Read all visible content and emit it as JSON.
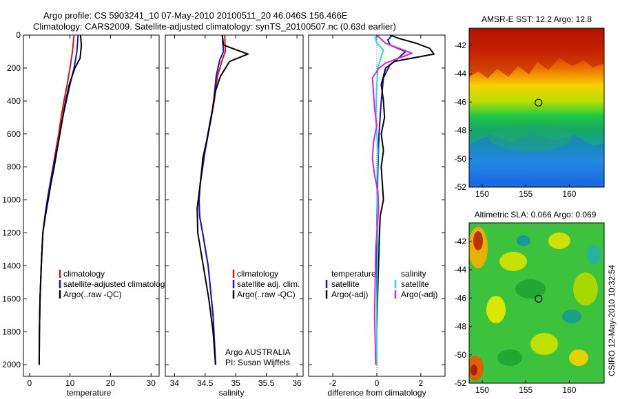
{
  "header": {
    "line1": "Argo profile: CS 5903241_10 07-May-2010 20100511_20 46.046S 156.466E",
    "line2": "Climatology: CARS2009. Satellite-adjusted climatology: synTS_20100507.nc (0.63d earlier)"
  },
  "credit": "CSIRO 12-May-2010 10:32:54",
  "colors": {
    "climatology": "#dd1111",
    "satellite": "#1111dd",
    "argo": "#000000",
    "satellite_salinity": "#22dddd",
    "argo_salinity_adj": "#dd22dd"
  },
  "chart_data": [
    {
      "id": "temperature",
      "type": "line",
      "xlabel": "temperature",
      "xlim": [
        -1.5,
        32
      ],
      "xticks": [
        0,
        10,
        20,
        30
      ],
      "ylim": [
        0,
        2070
      ],
      "yticks": [
        0,
        200,
        400,
        600,
        800,
        1000,
        1200,
        1400,
        1600,
        1800,
        2000
      ],
      "yreversed": true,
      "legend": {
        "position": "lower-right",
        "entries": [
          "climatology",
          "satellite-adjusted climatology",
          "Argo(..raw -QC)"
        ]
      },
      "series": [
        {
          "name": "climatology",
          "color": "#dd1111",
          "x": [
            11.0,
            10.6,
            10.0,
            9.3,
            8.5,
            7.8,
            7.2,
            6.5,
            5.8,
            5.1,
            4.4,
            3.8,
            3.3,
            2.9,
            2.6,
            2.45,
            2.4
          ],
          "y": [
            0,
            100,
            200,
            300,
            400,
            500,
            600,
            700,
            800,
            900,
            1000,
            1100,
            1200,
            1400,
            1600,
            1800,
            2000
          ]
        },
        {
          "name": "satellite-adjusted climatology",
          "color": "#1111dd",
          "x": [
            12.0,
            11.7,
            11.0,
            10.0,
            9.1,
            8.2,
            7.5,
            6.7,
            5.9,
            5.1,
            4.4,
            3.8,
            3.3,
            2.9,
            2.6,
            2.45,
            2.4
          ],
          "y": [
            0,
            100,
            200,
            300,
            400,
            500,
            600,
            700,
            800,
            900,
            1000,
            1100,
            1200,
            1400,
            1600,
            1800,
            2000
          ]
        },
        {
          "name": "Argo(..raw -QC)",
          "color": "#000000",
          "x": [
            12.6,
            12.8,
            12.5,
            11.2,
            9.8,
            8.9,
            8.2,
            7.5,
            6.8,
            6.1,
            5.3,
            4.6,
            3.9,
            3.3,
            2.9,
            2.6,
            2.45,
            2.4
          ],
          "y": [
            0,
            60,
            140,
            200,
            300,
            400,
            500,
            600,
            700,
            800,
            900,
            1000,
            1100,
            1200,
            1400,
            1600,
            1800,
            2000
          ]
        }
      ]
    },
    {
      "id": "salinity",
      "type": "line",
      "xlabel": "salinity",
      "xlim": [
        33.85,
        36.1
      ],
      "xticks": [
        34,
        34.5,
        35,
        35.5,
        36
      ],
      "ylim": [
        0,
        2070
      ],
      "yticks": [
        0,
        200,
        400,
        600,
        800,
        1000,
        1200,
        1400,
        1600,
        1800,
        2000
      ],
      "yreversed": true,
      "legend": {
        "position": "lower-right",
        "entries": [
          "climatology",
          "satellite adj. clim.",
          "Argo(..raw -QC)"
        ]
      },
      "annotation": [
        "Argo AUSTRALIA",
        "PI: Susan Wijffels"
      ],
      "series": [
        {
          "name": "climatology",
          "color": "#dd1111",
          "x": [
            34.82,
            34.83,
            34.78,
            34.7,
            34.65,
            34.6,
            34.55,
            34.5,
            34.46,
            34.42,
            34.4,
            34.41,
            34.46,
            34.55,
            34.63,
            34.67
          ],
          "y": [
            0,
            100,
            150,
            250,
            400,
            500,
            600,
            700,
            800,
            900,
            1000,
            1100,
            1200,
            1400,
            1700,
            2000
          ]
        },
        {
          "name": "satellite adj. clim.",
          "color": "#1111dd",
          "x": [
            34.78,
            34.8,
            34.74,
            34.68,
            34.64,
            34.6,
            34.55,
            34.5,
            34.46,
            34.42,
            34.4,
            34.41,
            34.46,
            34.55,
            34.63,
            34.67
          ],
          "y": [
            0,
            100,
            150,
            250,
            400,
            500,
            600,
            700,
            800,
            900,
            1000,
            1100,
            1200,
            1400,
            1700,
            2000
          ]
        },
        {
          "name": "Argo(..raw -QC)",
          "color": "#000000",
          "x": [
            34.78,
            34.8,
            35.05,
            35.2,
            34.9,
            34.75,
            34.66,
            34.62,
            34.57,
            34.52,
            34.46,
            34.45,
            34.42,
            34.37,
            34.38,
            34.47,
            34.56,
            34.63,
            34.67
          ],
          "y": [
            0,
            60,
            95,
            115,
            160,
            250,
            350,
            450,
            550,
            650,
            750,
            800,
            900,
            1050,
            1200,
            1400,
            1600,
            1800,
            2000
          ]
        }
      ]
    },
    {
      "id": "difference",
      "type": "line",
      "xlabel": "difference from climatology",
      "xlim": [
        -3.1,
        3.1
      ],
      "xticks": [
        -2,
        0,
        2
      ],
      "ylim": [
        0,
        2070
      ],
      "yticks": [
        0,
        200,
        400,
        600,
        800,
        1000,
        1200,
        1400,
        1600,
        1800,
        2000
      ],
      "yreversed": true,
      "legend_temperature": {
        "header": "temperature",
        "entries": [
          "satellite",
          "Argo(-adj)"
        ]
      },
      "legend_salinity": {
        "header": "salinity",
        "entries": [
          "satellite",
          "Argo(-adj)"
        ]
      },
      "series": [
        {
          "name": "temperature satellite",
          "color": "#1111dd",
          "x": [
            0.7,
            0.5,
            0.6,
            1.3,
            0.9,
            0.6,
            0.3,
            0.2,
            0.1,
            0.05,
            0.02,
            0,
            0
          ],
          "y": [
            0,
            30,
            60,
            100,
            150,
            180,
            260,
            400,
            600,
            800,
            1000,
            1500,
            2000
          ]
        },
        {
          "name": "temperature Argo(-adj)",
          "color": "#000000",
          "x": [
            0.6,
            1.0,
            1.8,
            2.4,
            2.6,
            1.6,
            0.8,
            0.4,
            0.2,
            0.3,
            0.35,
            0.2,
            0.3,
            0.2,
            0.25,
            0.3,
            0.15,
            0.1,
            0.05,
            0.0,
            0.0
          ],
          "y": [
            0,
            20,
            50,
            80,
            115,
            140,
            160,
            200,
            300,
            400,
            500,
            600,
            700,
            800,
            900,
            1000,
            1100,
            1300,
            1500,
            1800,
            2000
          ]
        },
        {
          "name": "salinity satellite",
          "color": "#22dddd",
          "x": [
            -0.1,
            0,
            0.3,
            0.2,
            0.05,
            0,
            -0.05,
            0.05,
            0,
            0.05,
            0,
            0
          ],
          "y": [
            0,
            50,
            90,
            130,
            200,
            300,
            500,
            700,
            900,
            1200,
            1600,
            2000
          ]
        },
        {
          "name": "salinity Argo(-adj)",
          "color": "#dd22dd",
          "x": [
            0,
            0.4,
            1.0,
            1.6,
            1.0,
            0.4,
            0.1,
            -0.2,
            -0.15,
            -0.1,
            0,
            -0.15,
            -0.2,
            -0.1,
            0.05,
            0.08,
            -0.05,
            -0.1,
            -0.05
          ],
          "y": [
            0,
            50,
            80,
            110,
            140,
            170,
            200,
            260,
            350,
            450,
            550,
            650,
            750,
            850,
            950,
            1050,
            1300,
            1700,
            2000
          ]
        }
      ]
    },
    {
      "id": "sst-map",
      "type": "heatmap",
      "title": "AMSR-E SST: 12.2 Argo: 12.8",
      "xlim": [
        148.5,
        164
      ],
      "xticks": [
        150,
        155,
        160
      ],
      "ylim": [
        -52,
        -40.8
      ],
      "yticks": [
        -52,
        -50,
        -48,
        -46,
        -44,
        -42
      ],
      "marker": {
        "lon": 156.466,
        "lat": -46.046
      }
    },
    {
      "id": "sla-map",
      "type": "heatmap",
      "title": "Altimetric SLA: 0.066 Argo: 0.069",
      "xlim": [
        148.5,
        164
      ],
      "xticks": [
        150,
        155,
        160
      ],
      "ylim": [
        -52,
        -40.7
      ],
      "yticks": [
        -52,
        -50,
        -48,
        -46,
        -44,
        -42
      ],
      "marker": {
        "lon": 156.466,
        "lat": -46.046
      }
    }
  ]
}
